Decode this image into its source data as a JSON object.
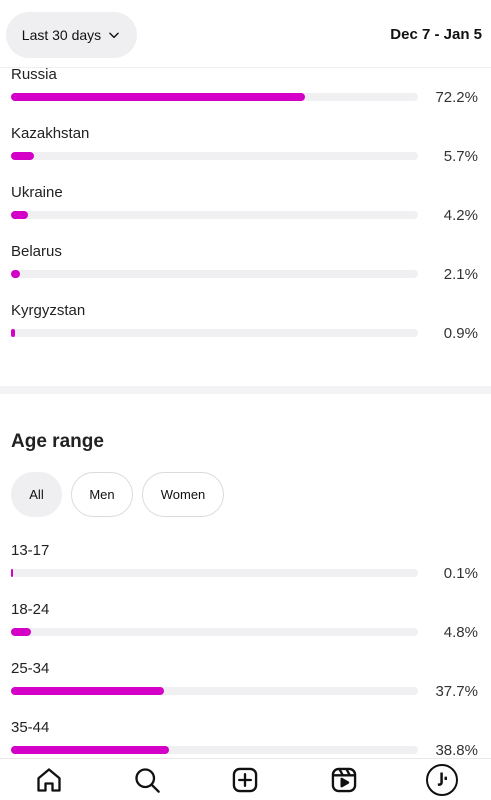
{
  "header": {
    "period_label": "Last 30 days",
    "date_range": "Dec 7 - Jan 5"
  },
  "countries": [
    {
      "name": "Russia",
      "percent_label": "72.2%",
      "value": 72.2
    },
    {
      "name": "Kazakhstan",
      "percent_label": "5.7%",
      "value": 5.7
    },
    {
      "name": "Ukraine",
      "percent_label": "4.2%",
      "value": 4.2
    },
    {
      "name": "Belarus",
      "percent_label": "2.1%",
      "value": 2.1
    },
    {
      "name": "Kyrgyzstan",
      "percent_label": "0.9%",
      "value": 0.9
    }
  ],
  "age_section": {
    "title": "Age range",
    "filters": [
      "All",
      "Men",
      "Women"
    ],
    "active_filter": "All"
  },
  "ages": [
    {
      "name": "13-17",
      "percent_label": "0.1%",
      "value": 0.1
    },
    {
      "name": "18-24",
      "percent_label": "4.8%",
      "value": 4.8
    },
    {
      "name": "25-34",
      "percent_label": "37.7%",
      "value": 37.7
    },
    {
      "name": "35-44",
      "percent_label": "38.8%",
      "value": 38.8
    }
  ],
  "colors": {
    "bar_fill": "#d400c8",
    "bar_track": "#f0f0f2"
  },
  "nav": {
    "icons": [
      "home-icon",
      "search-icon",
      "create-icon",
      "reels-icon",
      "profile-avatar"
    ]
  }
}
